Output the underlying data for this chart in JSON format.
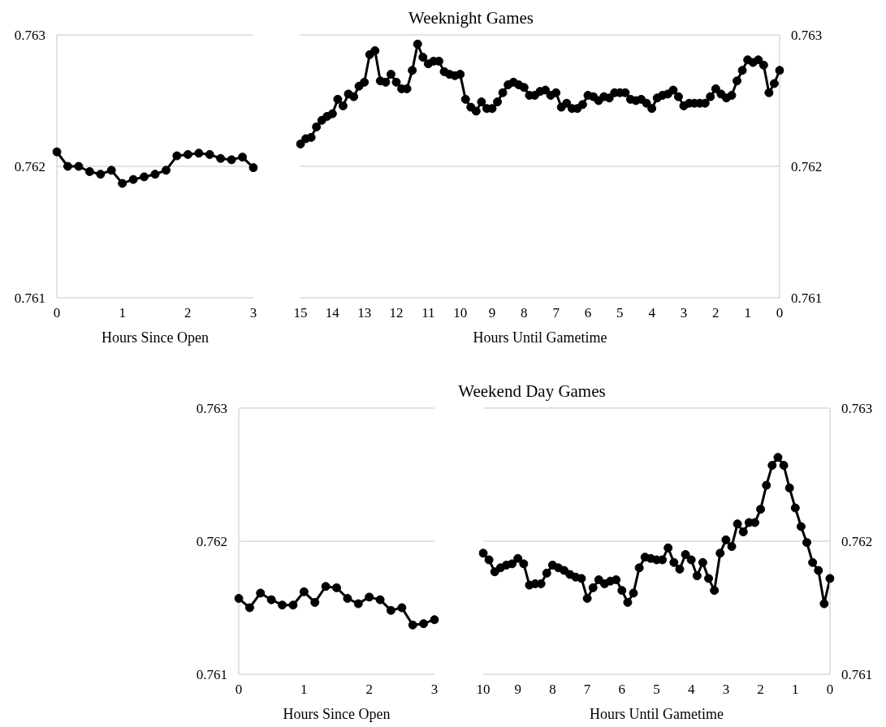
{
  "chart_data": [
    {
      "type": "line",
      "xlabel": "Hours Since Open",
      "xlim": [
        0,
        3
      ],
      "xticks": [
        0,
        1,
        2,
        3
      ],
      "ylim": [
        0.761,
        0.763
      ],
      "yticks": [
        0.761,
        0.762,
        0.763
      ],
      "grid": "y",
      "marker": "circle",
      "series": [
        {
          "color": "#000000",
          "x": [
            0,
            0.167,
            0.333,
            0.5,
            0.667,
            0.833,
            1,
            1.167,
            1.333,
            1.5,
            1.667,
            1.833,
            2,
            2.167,
            2.333,
            2.5,
            2.667,
            2.833,
            3
          ],
          "values": [
            0.76211,
            0.762,
            0.762,
            0.76196,
            0.76194,
            0.76197,
            0.76187,
            0.7619,
            0.76192,
            0.76194,
            0.76197,
            0.76208,
            0.76209,
            0.7621,
            0.76209,
            0.76206,
            0.76205,
            0.76207,
            0.76199
          ]
        }
      ]
    },
    {
      "type": "line",
      "title": "Weeknight Games",
      "xlabel": "Hours Until Gametime",
      "xlim": [
        15,
        0
      ],
      "xticks": [
        15,
        14,
        13,
        12,
        11,
        10,
        9,
        8,
        7,
        6,
        5,
        4,
        3,
        2,
        1,
        0
      ],
      "y2lim": [
        0.761,
        0.763
      ],
      "y2ticks": [
        0.761,
        0.762,
        0.763
      ],
      "grid": "y",
      "marker": "circle",
      "series": [
        {
          "color": "#000000",
          "axis": "y2",
          "x": [
            15,
            14.833,
            14.667,
            14.5,
            14.333,
            14.167,
            14,
            13.833,
            13.667,
            13.5,
            13.333,
            13.167,
            13,
            12.833,
            12.667,
            12.5,
            12.333,
            12.167,
            12,
            11.833,
            11.667,
            11.5,
            11.333,
            11.167,
            11,
            10.833,
            10.667,
            10.5,
            10.333,
            10.167,
            10,
            9.833,
            9.667,
            9.5,
            9.333,
            9.167,
            9,
            8.833,
            8.667,
            8.5,
            8.333,
            8.167,
            8,
            7.833,
            7.667,
            7.5,
            7.333,
            7.167,
            7,
            6.833,
            6.667,
            6.5,
            6.333,
            6.167,
            6,
            5.833,
            5.667,
            5.5,
            5.333,
            5.167,
            5,
            4.833,
            4.667,
            4.5,
            4.333,
            4.167,
            4,
            3.833,
            3.667,
            3.5,
            3.333,
            3.167,
            3,
            2.833,
            2.667,
            2.5,
            2.333,
            2.167,
            2,
            1.833,
            1.667,
            1.5,
            1.333,
            1.167,
            1,
            0.833,
            0.667,
            0.5,
            0.333,
            0.167,
            0
          ],
          "values": [
            0.76217,
            0.76221,
            0.76222,
            0.7623,
            0.76235,
            0.76238,
            0.7624,
            0.76251,
            0.76246,
            0.76255,
            0.76253,
            0.76261,
            0.76264,
            0.76285,
            0.76288,
            0.76265,
            0.76264,
            0.7627,
            0.76264,
            0.76259,
            0.76259,
            0.76273,
            0.76293,
            0.76283,
            0.76278,
            0.7628,
            0.7628,
            0.76272,
            0.7627,
            0.76269,
            0.7627,
            0.76251,
            0.76245,
            0.76242,
            0.76249,
            0.76244,
            0.76244,
            0.76249,
            0.76256,
            0.76262,
            0.76264,
            0.76262,
            0.7626,
            0.76254,
            0.76254,
            0.76257,
            0.76258,
            0.76254,
            0.76256,
            0.76245,
            0.76248,
            0.76244,
            0.76244,
            0.76247,
            0.76254,
            0.76253,
            0.7625,
            0.76253,
            0.76252,
            0.76256,
            0.76256,
            0.76256,
            0.76251,
            0.7625,
            0.76251,
            0.76248,
            0.76244,
            0.76252,
            0.76254,
            0.76255,
            0.76258,
            0.76253,
            0.76246,
            0.76248,
            0.76248,
            0.76248,
            0.76248,
            0.76253,
            0.76259,
            0.76255,
            0.76252,
            0.76254,
            0.76265,
            0.76273,
            0.76281,
            0.76279,
            0.76281,
            0.76277,
            0.76256,
            0.76263,
            0.76273
          ]
        }
      ]
    },
    {
      "type": "line",
      "xlabel": "Hours Since Open",
      "xlim": [
        0,
        3
      ],
      "xticks": [
        0,
        1,
        2,
        3
      ],
      "ylim": [
        0.761,
        0.763
      ],
      "yticks": [
        0.761,
        0.762,
        0.763
      ],
      "grid": "y",
      "marker": "circle",
      "series": [
        {
          "color": "#000000",
          "x": [
            0,
            0.167,
            0.333,
            0.5,
            0.667,
            0.833,
            1,
            1.167,
            1.333,
            1.5,
            1.667,
            1.833,
            2,
            2.167,
            2.333,
            2.5,
            2.667,
            2.833,
            3
          ],
          "values": [
            0.76157,
            0.7615,
            0.76161,
            0.76156,
            0.76152,
            0.76152,
            0.76162,
            0.76154,
            0.76166,
            0.76165,
            0.76157,
            0.76153,
            0.76158,
            0.76156,
            0.76148,
            0.7615,
            0.76137,
            0.76138,
            0.76141
          ]
        }
      ]
    },
    {
      "type": "line",
      "title": "Weekend Day Games",
      "xlabel": "Hours Until Gametime",
      "xlim": [
        10,
        0
      ],
      "xticks": [
        10,
        9,
        8,
        7,
        6,
        5,
        4,
        3,
        2,
        1,
        0
      ],
      "y2lim": [
        0.761,
        0.763
      ],
      "y2ticks": [
        0.761,
        0.762,
        0.763
      ],
      "grid": "y",
      "marker": "circle",
      "series": [
        {
          "color": "#000000",
          "axis": "y2",
          "x": [
            10,
            9.833,
            9.667,
            9.5,
            9.333,
            9.167,
            9,
            8.833,
            8.667,
            8.5,
            8.333,
            8.167,
            8,
            7.833,
            7.667,
            7.5,
            7.333,
            7.167,
            7,
            6.833,
            6.667,
            6.5,
            6.333,
            6.167,
            6,
            5.833,
            5.667,
            5.5,
            5.333,
            5.167,
            5,
            4.833,
            4.667,
            4.5,
            4.333,
            4.167,
            4,
            3.833,
            3.667,
            3.5,
            3.333,
            3.167,
            3,
            2.833,
            2.667,
            2.5,
            2.333,
            2.167,
            2,
            1.833,
            1.667,
            1.5,
            1.333,
            1.167,
            1,
            0.833,
            0.667,
            0.5,
            0.333,
            0.167,
            0
          ],
          "values": [
            0.76191,
            0.76186,
            0.76177,
            0.7618,
            0.76182,
            0.76183,
            0.76187,
            0.76183,
            0.76167,
            0.76168,
            0.76168,
            0.76176,
            0.76182,
            0.7618,
            0.76178,
            0.76175,
            0.76173,
            0.76172,
            0.76157,
            0.76165,
            0.76171,
            0.76168,
            0.7617,
            0.76171,
            0.76163,
            0.76154,
            0.76161,
            0.7618,
            0.76188,
            0.76187,
            0.76186,
            0.76186,
            0.76195,
            0.76184,
            0.76179,
            0.7619,
            0.76186,
            0.76174,
            0.76184,
            0.76172,
            0.76163,
            0.76191,
            0.76201,
            0.76196,
            0.76213,
            0.76207,
            0.76214,
            0.76214,
            0.76224,
            0.76242,
            0.76257,
            0.76263,
            0.76257,
            0.7624,
            0.76225,
            0.76211,
            0.76199,
            0.76184,
            0.76178,
            0.76153,
            0.76172
          ]
        }
      ]
    }
  ]
}
